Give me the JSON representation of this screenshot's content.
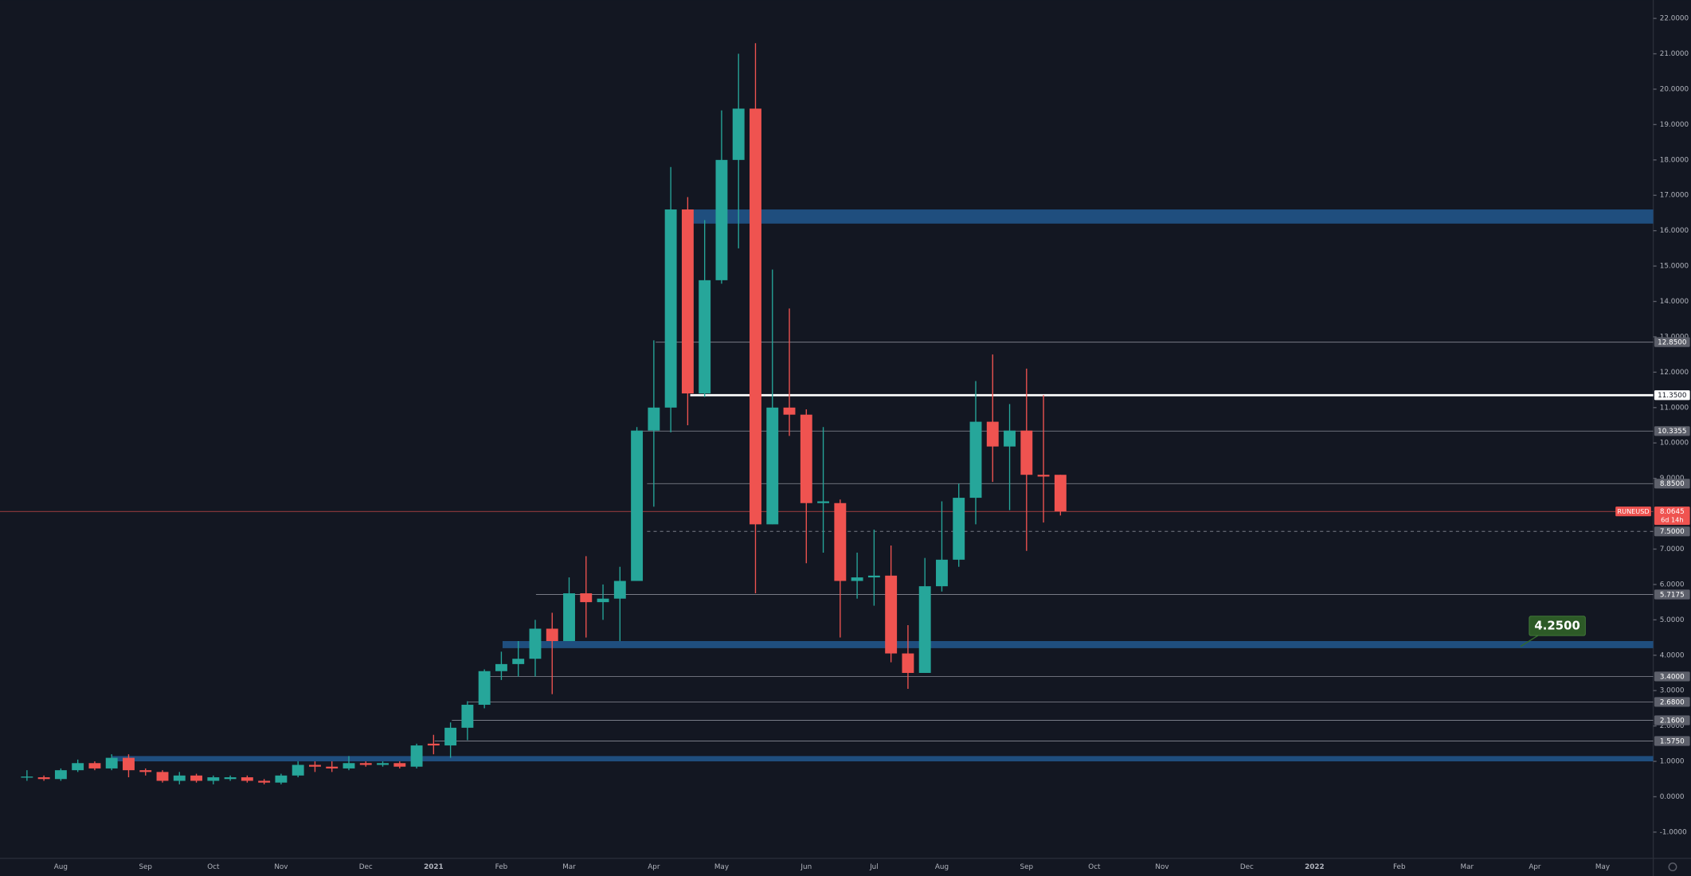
{
  "chart_data": {
    "type": "candlestick",
    "symbol": "RUNEUSD",
    "up_color": "#26a69a",
    "down_color": "#ef5350",
    "categories": [
      null,
      null,
      "Aug",
      null,
      null,
      null,
      null,
      "Sep",
      null,
      null,
      null,
      "Oct",
      null,
      null,
      null,
      "Nov",
      null,
      null,
      null,
      null,
      "Dec",
      null,
      null,
      null,
      "2021",
      null,
      null,
      null,
      "Feb",
      null,
      null,
      null,
      "Mar",
      null,
      null,
      null,
      null,
      "Apr",
      null,
      null,
      null,
      "May",
      null,
      null,
      null,
      null,
      "Jun",
      null,
      null,
      null,
      "Jul",
      null,
      null,
      null,
      "Aug",
      null,
      null,
      null,
      null,
      "Sep",
      null,
      null,
      null,
      "Oct",
      null,
      null,
      null,
      "Nov",
      null,
      null,
      null,
      null,
      "Dec",
      null,
      null,
      null,
      "2022",
      null,
      null,
      null,
      null,
      "Feb",
      null,
      null,
      null,
      "Mar",
      null,
      null,
      null,
      "Apr",
      null,
      null,
      null,
      "May",
      null,
      null
    ],
    "open": [
      0.55,
      0.55,
      0.5,
      0.75,
      0.95,
      0.8,
      1.1,
      0.75,
      0.7,
      0.45,
      0.6,
      0.45,
      0.5,
      0.55,
      0.45,
      0.4,
      0.6,
      0.9,
      0.85,
      0.8,
      0.95,
      0.9,
      0.95,
      0.85,
      1.5,
      1.45,
      1.95,
      2.6,
      3.55,
      3.75,
      3.9,
      4.75,
      4.4,
      5.75,
      5.5,
      5.6,
      6.1,
      10.35,
      11.0,
      16.6,
      11.4,
      14.6,
      18.0,
      19.45,
      7.7,
      11.0,
      10.8,
      8.3,
      8.3,
      6.1,
      6.2,
      6.25,
      4.05,
      3.5,
      5.95,
      6.7,
      8.45,
      10.6,
      9.9,
      10.35,
      9.1,
      9.1,
      null,
      null,
      null,
      null,
      null,
      null,
      null,
      null,
      null,
      null,
      null,
      null,
      null,
      null,
      null,
      null,
      null,
      null,
      null,
      null,
      null,
      null,
      null,
      null,
      null,
      null,
      null,
      null,
      null,
      null,
      null,
      null,
      null,
      null
    ],
    "high": [
      0.75,
      0.6,
      0.8,
      1.05,
      1.0,
      1.2,
      1.2,
      0.8,
      0.75,
      0.7,
      0.65,
      0.6,
      0.6,
      0.6,
      0.5,
      0.65,
      1.0,
      1.0,
      1.0,
      1.15,
      1.0,
      1.0,
      1.0,
      1.5,
      1.75,
      2.1,
      2.7,
      3.6,
      4.1,
      4.4,
      5.0,
      5.2,
      6.2,
      6.8,
      6.0,
      6.5,
      10.45,
      12.9,
      17.8,
      16.95,
      16.3,
      19.4,
      21.0,
      21.3,
      14.9,
      13.8,
      10.95,
      10.45,
      8.4,
      6.9,
      7.55,
      7.1,
      4.85,
      6.75,
      8.35,
      8.85,
      11.75,
      12.5,
      11.1,
      12.1,
      11.35,
      9.1,
      null,
      null,
      null,
      null,
      null,
      null,
      null,
      null,
      null,
      null,
      null,
      null,
      null,
      null,
      null,
      null,
      null,
      null,
      null,
      null,
      null,
      null,
      null,
      null,
      null,
      null,
      null,
      null,
      null,
      null,
      null,
      null,
      null,
      null
    ],
    "low": [
      0.45,
      0.45,
      0.45,
      0.7,
      0.75,
      0.75,
      0.55,
      0.6,
      0.4,
      0.35,
      0.4,
      0.35,
      0.45,
      0.4,
      0.35,
      0.35,
      0.55,
      0.7,
      0.7,
      0.75,
      0.85,
      0.85,
      0.8,
      0.8,
      1.2,
      1.1,
      1.6,
      2.5,
      3.3,
      3.4,
      3.4,
      2.9,
      4.4,
      4.5,
      5.0,
      4.4,
      6.1,
      8.2,
      10.3,
      10.5,
      11.3,
      14.5,
      15.5,
      5.75,
      7.7,
      10.2,
      6.6,
      6.9,
      4.5,
      5.6,
      5.4,
      3.8,
      3.05,
      3.5,
      5.8,
      6.5,
      7.7,
      8.9,
      8.1,
      6.95,
      7.75,
      7.95,
      null,
      null,
      null,
      null,
      null,
      null,
      null,
      null,
      null,
      null,
      null,
      null,
      null,
      null,
      null,
      null,
      null,
      null,
      null,
      null,
      null,
      null,
      null,
      null,
      null,
      null,
      null,
      null,
      null,
      null,
      null,
      null,
      null,
      null
    ],
    "close": [
      0.57,
      0.5,
      0.75,
      0.95,
      0.8,
      1.1,
      0.75,
      0.7,
      0.45,
      0.6,
      0.45,
      0.55,
      0.55,
      0.45,
      0.4,
      0.6,
      0.9,
      0.85,
      0.8,
      0.95,
      0.9,
      0.95,
      0.85,
      1.45,
      1.45,
      1.95,
      2.6,
      3.55,
      3.75,
      3.9,
      4.75,
      4.4,
      5.75,
      5.5,
      5.6,
      6.1,
      10.35,
      11.0,
      16.6,
      11.4,
      14.6,
      18.0,
      19.45,
      7.7,
      11.0,
      10.8,
      8.3,
      8.35,
      6.1,
      6.2,
      6.25,
      4.05,
      3.5,
      5.95,
      6.7,
      8.45,
      10.6,
      9.9,
      10.35,
      9.1,
      9.05,
      8.0645,
      null,
      null,
      null,
      null,
      null,
      null,
      null,
      null,
      null,
      null,
      null,
      null,
      null,
      null,
      null,
      null,
      null,
      null,
      null,
      null,
      null,
      null,
      null,
      null,
      null,
      null,
      null,
      null,
      null,
      null,
      null,
      null,
      null,
      null
    ],
    "ylim": [
      -1.74,
      22.52
    ],
    "yticks": [
      {
        "value": 22,
        "label": "22.0000"
      },
      {
        "value": 21,
        "label": "21.0000"
      },
      {
        "value": 20,
        "label": "20.0000"
      },
      {
        "value": 19,
        "label": "19.0000"
      },
      {
        "value": 18,
        "label": "18.0000"
      },
      {
        "value": 17,
        "label": "17.0000"
      },
      {
        "value": 16,
        "label": "16.0000"
      },
      {
        "value": 15,
        "label": "15.0000"
      },
      {
        "value": 14,
        "label": "14.0000"
      },
      {
        "value": 13,
        "label": "13.0000"
      },
      {
        "value": 12,
        "label": "12.0000"
      },
      {
        "value": 11,
        "label": "11.0000"
      },
      {
        "value": 10,
        "label": "10.0000"
      },
      {
        "value": 9,
        "label": "9.0000"
      },
      {
        "value": 7,
        "label": "7.0000"
      },
      {
        "value": 6,
        "label": "6.0000"
      },
      {
        "value": 5,
        "label": "5.0000"
      },
      {
        "value": 4,
        "label": "4.0000"
      },
      {
        "value": 3,
        "label": "3.0000"
      },
      {
        "value": 2,
        "label": "2.0000"
      },
      {
        "value": 1,
        "label": "1.0000"
      },
      {
        "value": 0,
        "label": "0.0000"
      },
      {
        "value": -1,
        "label": "-1.0000"
      }
    ],
    "levels": [
      {
        "value": 12.85,
        "label": "12.8500",
        "color": "#787b86"
      },
      {
        "value": 11.35,
        "label": "11.3500",
        "color": "#ffffff"
      },
      {
        "value": 10.3355,
        "label": "10.3355",
        "color": "#787b86"
      },
      {
        "value": 8.85,
        "label": "8.8500",
        "color": "#787b86"
      },
      {
        "value": 7.5,
        "label": "7.5000",
        "color": "#787b86",
        "dashed": true
      },
      {
        "value": 5.7175,
        "label": "5.7175",
        "color": "#787b86"
      },
      {
        "value": 3.4,
        "label": "3.4000",
        "color": "#787b86"
      },
      {
        "value": 2.68,
        "label": "2.6800",
        "color": "#787b86"
      },
      {
        "value": 2.16,
        "label": "2.1600",
        "color": "#787b86"
      },
      {
        "value": 1.575,
        "label": "1.5750",
        "color": "#787b86"
      }
    ],
    "zones": [
      {
        "low": 16.2,
        "high": 16.6
      },
      {
        "low": 4.2,
        "high": 4.4
      },
      {
        "low": 1.0,
        "high": 1.15
      }
    ],
    "zone_color": "#1f4e7e",
    "last_price": {
      "value": 8.0645,
      "label": "8.0645",
      "countdown": "6d 14h"
    },
    "annotation": {
      "value": 4.25,
      "label": "4.2500"
    }
  }
}
